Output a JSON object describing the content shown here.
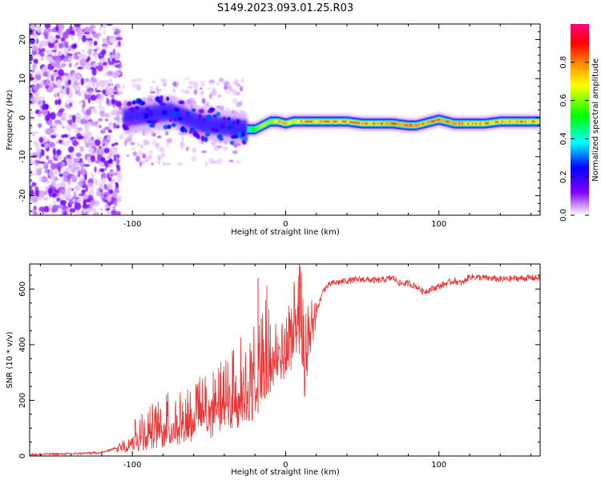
{
  "title": "S149.2023.093.01.25.R03",
  "chart_data": [
    {
      "type": "heatmap",
      "title": "S149.2023.093.01.25.R03",
      "xlabel": "Height of straight line (km)",
      "ylabel": "Frequency (Hz)",
      "xlim": [
        -167,
        166
      ],
      "ylim": [
        -25,
        24
      ],
      "x_ticks": [
        -100,
        0,
        100
      ],
      "y_ticks": [
        -20,
        -10,
        0,
        10,
        20
      ],
      "colorbar": {
        "label": "Normalized spectral amplitude",
        "range": [
          0,
          1
        ],
        "ticks": [
          0.0,
          0.2,
          0.4,
          0.6,
          0.8
        ],
        "colormap": [
          "#ffffff",
          "#7f00ff",
          "#0000ff",
          "#00ffff",
          "#00ff00",
          "#ffff00",
          "#ff8000",
          "#ff0000",
          "#ff0080"
        ]
      },
      "ridge": {
        "x": [
          -105,
          -95,
          -85,
          -75,
          -65,
          -55,
          -45,
          -35,
          -25,
          -20,
          -15,
          -10,
          -5,
          0,
          5,
          10,
          20,
          30,
          40,
          50,
          60,
          70,
          80,
          85,
          90,
          95,
          100,
          110,
          120,
          130,
          140,
          150,
          160,
          166
        ],
        "freq": [
          0,
          0.5,
          1,
          1.5,
          0,
          -1.5,
          -2,
          -2.5,
          -3,
          -3,
          -2,
          -1,
          -1,
          -1.5,
          -1,
          -1,
          -1,
          -1,
          -1,
          -1.5,
          -1.5,
          -1.5,
          -2,
          -2,
          -1.5,
          -1,
          -0.5,
          -1.5,
          -1.5,
          -1.5,
          -1,
          -1,
          -1,
          -1
        ],
        "amplitude": [
          0.3,
          0.45,
          0.5,
          0.5,
          0.45,
          0.45,
          0.5,
          0.5,
          0.55,
          0.7,
          0.8,
          0.75,
          0.85,
          0.85,
          0.8,
          0.85,
          0.85,
          0.85,
          0.85,
          0.85,
          0.85,
          0.9,
          0.9,
          0.9,
          0.85,
          0.9,
          0.9,
          0.9,
          0.85,
          0.85,
          0.85,
          0.85,
          0.85,
          0.85
        ]
      }
    },
    {
      "type": "line",
      "xlabel": "Height of straight line (km)",
      "ylabel": "SNR (10 * v/v)",
      "xlim": [
        -167,
        166
      ],
      "ylim": [
        0,
        690
      ],
      "x_ticks": [
        -100,
        0,
        100
      ],
      "y_ticks": [
        0,
        200,
        400,
        600
      ],
      "color": "#ee3333",
      "series": [
        {
          "x": [
            -167,
            -140,
            -120,
            -110,
            -100,
            -90,
            -80,
            -70,
            -60,
            -50,
            -40,
            -30,
            -20,
            -15,
            -10,
            -5,
            0,
            5,
            10,
            12,
            15,
            20,
            25,
            30,
            40,
            50,
            60,
            70,
            75,
            80,
            85,
            90,
            95,
            100,
            110,
            115,
            120,
            130,
            140,
            150,
            160,
            166
          ],
          "y": [
            5,
            8,
            12,
            30,
            55,
            80,
            100,
            120,
            145,
            170,
            195,
            230,
            260,
            290,
            320,
            345,
            380,
            420,
            440,
            280,
            440,
            520,
            600,
            620,
            630,
            635,
            630,
            640,
            620,
            620,
            610,
            590,
            600,
            610,
            630,
            620,
            645,
            640,
            635,
            638,
            640,
            640
          ]
        }
      ],
      "envelope": {
        "x": [
          -110,
          -100,
          -90,
          -80,
          -70,
          -60,
          -50,
          -40,
          -30,
          -25,
          -20,
          -15,
          -12,
          -10,
          -5,
          0,
          5,
          10,
          12,
          15,
          20
        ],
        "low": [
          10,
          15,
          20,
          30,
          40,
          50,
          60,
          80,
          100,
          110,
          140,
          180,
          200,
          230,
          260,
          280,
          320,
          380,
          200,
          300,
          450
        ],
        "high": [
          40,
          130,
          180,
          230,
          260,
          280,
          300,
          360,
          430,
          450,
          500,
          520,
          640,
          480,
          500,
          600,
          620,
          690,
          500,
          560,
          600
        ],
        "spikes": [
          {
            "x": -18,
            "y": 640
          },
          {
            "x": -10,
            "y": 470
          },
          {
            "x": 9,
            "y": 690
          }
        ]
      }
    }
  ]
}
